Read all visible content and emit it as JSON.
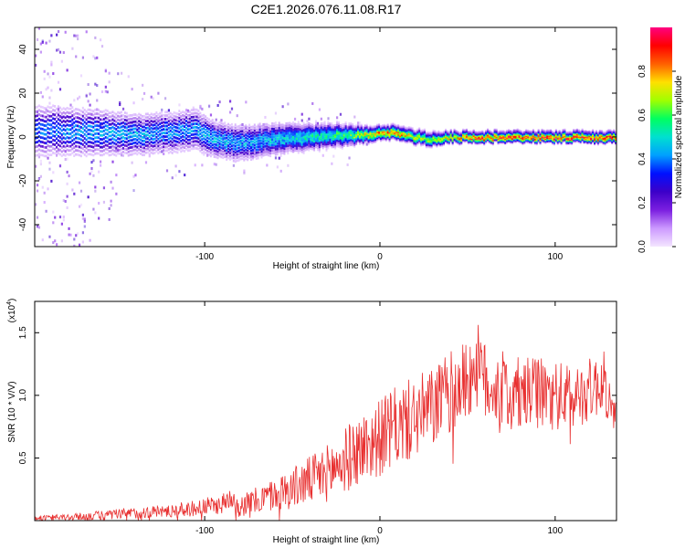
{
  "title": "C2E1.2026.076.11.08.R17",
  "colors": {
    "snr_line": "#e83030",
    "spectrogram_background": "#ffffff",
    "colormap": [
      "#f4e6ff",
      "#cc99ff",
      "#7b1fe0",
      "#3d00c8",
      "#0010ff",
      "#00a0ff",
      "#00e0d0",
      "#00ff60",
      "#a0ff00",
      "#ffe000",
      "#ff6000",
      "#ff0000",
      "#ff0080"
    ]
  },
  "chart_data": [
    {
      "type": "heatmap",
      "name": "spectrogram",
      "xlabel": "Height of straight line (km)",
      "ylabel": "Frequency (Hz)",
      "xlim": [
        -197,
        135
      ],
      "ylim": [
        -50,
        50
      ],
      "xticks": [
        "-100",
        "0",
        "100"
      ],
      "xtick_values": [
        -100,
        0,
        100
      ],
      "yticks": [
        "-40",
        "-20",
        "0",
        "20",
        "40"
      ],
      "ytick_values": [
        -40,
        -20,
        0,
        20,
        40
      ],
      "colorbar": {
        "label": "Normalized spectral amplitude",
        "ticks": [
          "0.0",
          "0.2",
          "0.4",
          "0.6",
          "0.8"
        ],
        "tick_values": [
          0.0,
          0.2,
          0.4,
          0.6,
          0.8
        ],
        "range": [
          0,
          1
        ]
      },
      "ridge": {
        "description": "dominant spectral line centre frequency vs height",
        "height_km": [
          -195,
          -160,
          -140,
          -120,
          -105,
          -95,
          -80,
          -60,
          -40,
          -20,
          -10,
          0,
          10,
          20,
          30,
          40,
          50,
          80,
          100,
          135
        ],
        "frequency_hz": [
          3,
          2,
          1,
          2,
          3,
          -1,
          -3,
          -1,
          0,
          1,
          1,
          2,
          2,
          0,
          -1,
          0,
          0,
          0,
          0,
          0
        ],
        "ridge_amplitude": [
          0.4,
          0.45,
          0.45,
          0.42,
          0.45,
          0.48,
          0.45,
          0.5,
          0.55,
          0.6,
          0.75,
          0.85,
          0.88,
          0.75,
          0.7,
          0.8,
          0.92,
          0.95,
          0.95,
          0.95
        ],
        "spread_hz": [
          10,
          9,
          8,
          8,
          8,
          7,
          7,
          6,
          5,
          4,
          3,
          2.5,
          2.5,
          2.5,
          2.5,
          2,
          2,
          2,
          2,
          2
        ]
      },
      "noise_cloud": {
        "description": "broad low-amplitude scatter, strongest at low heights",
        "height_km": [
          -197,
          -175,
          -160,
          -150,
          -130,
          -100,
          -60,
          -30,
          -15,
          0
        ],
        "frequency_halfwidth_hz": [
          50,
          50,
          48,
          30,
          22,
          18,
          16,
          15,
          12,
          6
        ],
        "density": [
          0.9,
          0.85,
          0.7,
          0.35,
          0.25,
          0.2,
          0.18,
          0.15,
          0.08,
          0.02
        ]
      }
    },
    {
      "type": "line",
      "name": "snr",
      "xlabel": "Height of straight line (km)",
      "ylabel": "SNR (10 * V/V)",
      "y_multiplier": "(x10",
      "y_multiplier_exponent": "4",
      "y_multiplier_close": ")",
      "xlim": [
        -197,
        135
      ],
      "ylim": [
        0,
        17500
      ],
      "xticks": [
        "-100",
        "0",
        "100"
      ],
      "xtick_values": [
        -100,
        0,
        100
      ],
      "yticks": [
        "0.5",
        "1.0",
        "1.5"
      ],
      "ytick_values": [
        5000,
        10000,
        15000
      ],
      "series": [
        {
          "name": "SNR",
          "description": "mean trend of a noisy red trace",
          "x": [
            -197,
            -170,
            -150,
            -130,
            -110,
            -100,
            -90,
            -84,
            -80,
            -70,
            -60,
            -50,
            -40,
            -30,
            -20,
            -10,
            0,
            10,
            20,
            30,
            40,
            50,
            55,
            60,
            70,
            80,
            90,
            100,
            110,
            120,
            128,
            132,
            135
          ],
          "y": [
            200,
            300,
            500,
            700,
            900,
            1100,
            1300,
            2000,
            1200,
            1600,
            2100,
            2600,
            3200,
            3800,
            4800,
            5800,
            6600,
            7500,
            8200,
            9000,
            10200,
            11200,
            12500,
            11000,
            10500,
            10000,
            10200,
            10000,
            9800,
            10500,
            11000,
            9000,
            8000
          ],
          "fluctuation": [
            150,
            300,
            400,
            450,
            550,
            650,
            700,
            900,
            800,
            1000,
            1200,
            1500,
            1800,
            2100,
            2400,
            2600,
            2800,
            3000,
            3000,
            3000,
            3000,
            3000,
            3200,
            3000,
            2800,
            2700,
            2600,
            2500,
            2400,
            2300,
            2300,
            1500,
            1500
          ]
        }
      ]
    }
  ]
}
